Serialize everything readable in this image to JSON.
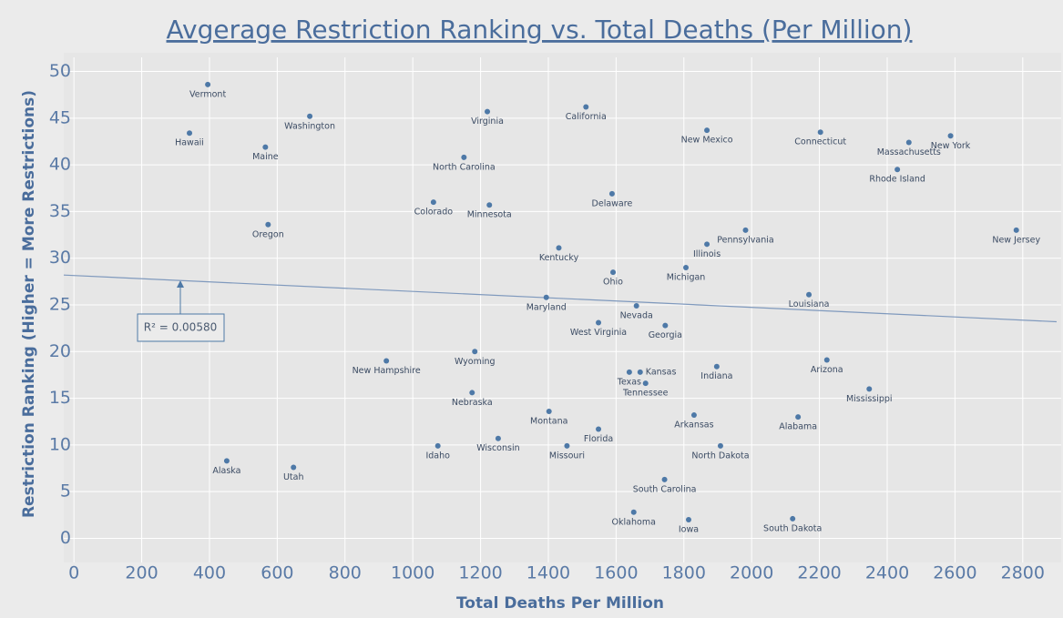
{
  "chart_data": {
    "type": "scatter",
    "title": "Avgerage Restriction Ranking vs. Total Deaths (Per Million)",
    "x_label": "Total Deaths Per Million",
    "y_label": "Restriction Ranking (Higher = More Restrictions)",
    "color": "#4e79a7",
    "labels": [
      "Vermont",
      "Hawaii",
      "Washington",
      "Maine",
      "Oregon",
      "Alaska",
      "Utah",
      "New Hampshire",
      "Colorado",
      "North Carolina",
      "Virginia",
      "Minnesota",
      "Wyoming",
      "Nebraska",
      "Idaho",
      "Wisconsin",
      "Montana",
      "Missouri",
      "Maryland",
      "Kentucky",
      "California",
      "Delaware",
      "Ohio",
      "West Virginia",
      "Florida",
      "Nevada",
      "Texas",
      "Kansas",
      "Tennessee",
      "Georgia",
      "South Carolina",
      "Oklahoma",
      "Iowa",
      "Arkansas",
      "North Dakota",
      "Indiana",
      "Michigan",
      "Illinois",
      "Pennsylvania",
      "New Mexico",
      "Connecticut",
      "Louisiana",
      "Arizona",
      "Alabama",
      "South Dakota",
      "Mississippi",
      "Massachusetts",
      "New York",
      "Rhode Island",
      "New Jersey"
    ],
    "x": [
      395,
      341,
      696,
      565,
      573,
      451,
      648,
      922,
      1061,
      1151,
      1220,
      1226,
      1183,
      1175,
      1074,
      1252,
      1402,
      1455,
      1394,
      1431,
      1511,
      1588,
      1591,
      1548,
      1548,
      1660,
      1639,
      1671,
      1687,
      1745,
      1743,
      1652,
      1814,
      1830,
      1908,
      1897,
      1806,
      1868,
      1982,
      1868,
      2203,
      2169,
      2222,
      2137,
      2121,
      2347,
      2464,
      2587,
      2430,
      2781
    ],
    "values": [
      48.6,
      43.4,
      45.2,
      41.9,
      33.6,
      8.3,
      7.6,
      19.0,
      36.0,
      40.8,
      45.7,
      35.7,
      20.0,
      15.6,
      9.9,
      10.7,
      13.6,
      9.9,
      25.8,
      31.1,
      46.2,
      36.9,
      28.5,
      23.1,
      11.7,
      24.9,
      17.8,
      17.8,
      16.6,
      22.8,
      6.3,
      2.8,
      2.0,
      13.2,
      9.9,
      18.4,
      29.0,
      31.5,
      33.0,
      43.7,
      43.5,
      26.1,
      19.1,
      13.0,
      2.1,
      16.0,
      42.4,
      43.1,
      39.5,
      33.0
    ],
    "trendline": {
      "x": [
        -30,
        2900
      ],
      "y": [
        28.2,
        23.2
      ]
    },
    "annotation": "R² = 0.00580",
    "xlim": [
      -30,
      2900
    ],
    "ylim": [
      -2,
      52
    ],
    "xticks": [
      0,
      200,
      400,
      600,
      800,
      1000,
      1200,
      1400,
      1600,
      1800,
      2000,
      2200,
      2400,
      2600,
      2800
    ],
    "yticks": [
      0,
      5,
      10,
      15,
      20,
      25,
      30,
      35,
      40,
      45,
      50
    ],
    "grid": true
  }
}
